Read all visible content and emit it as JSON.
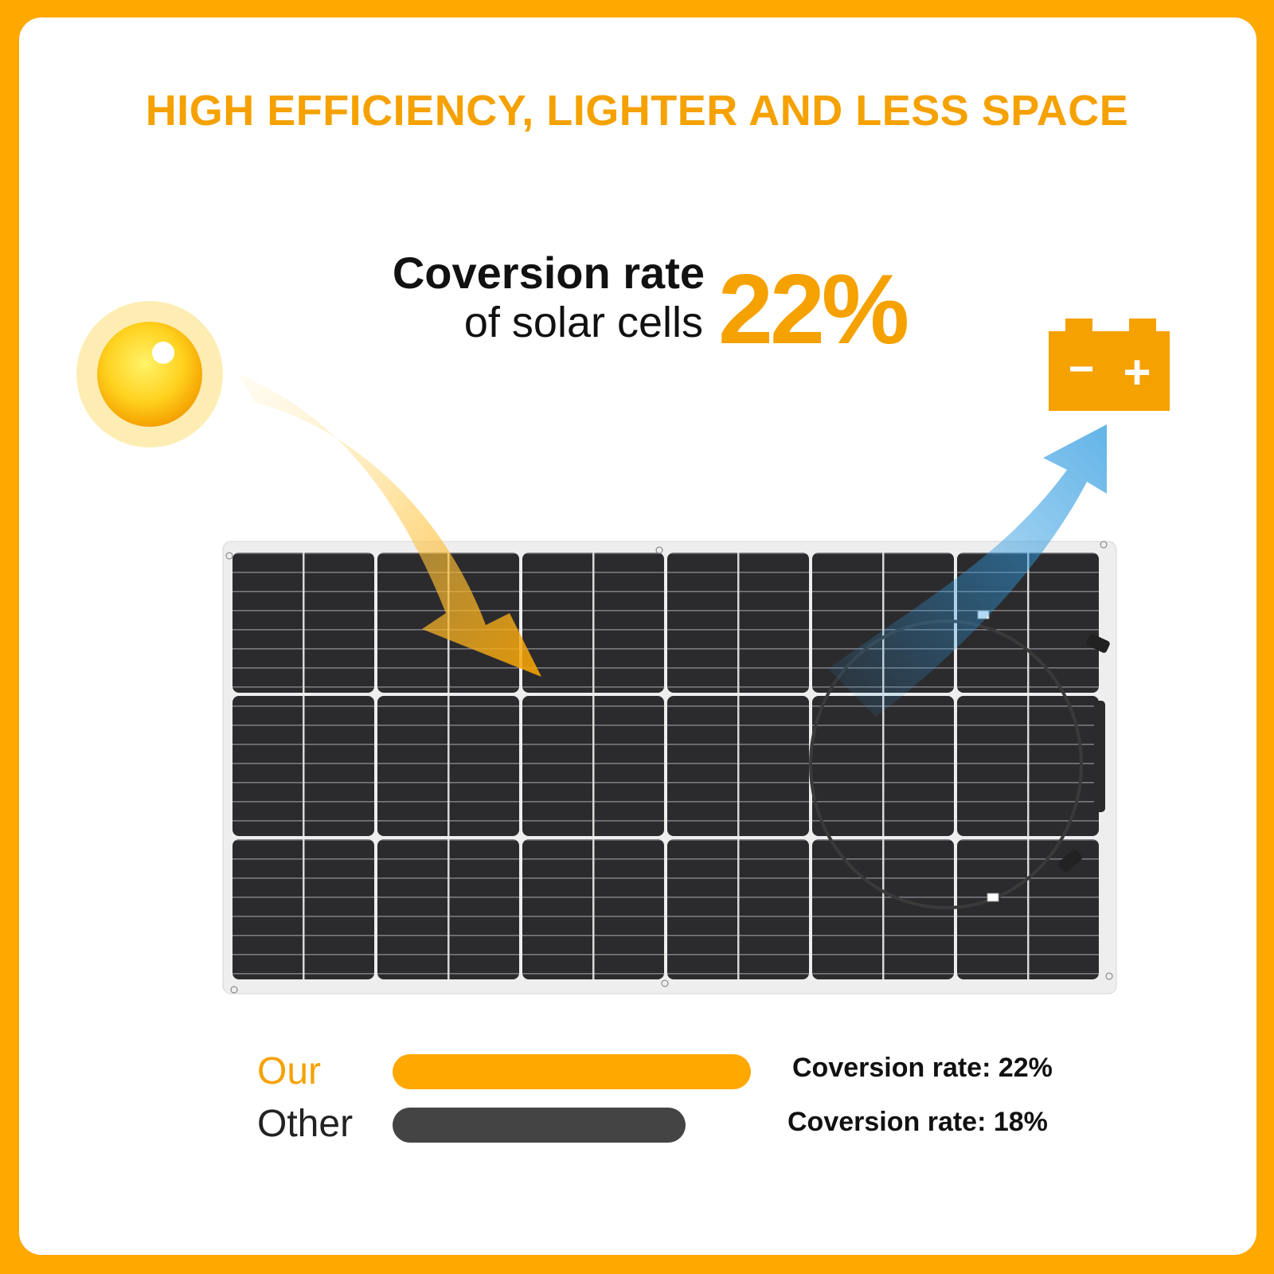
{
  "headline": "HIGH EFFICIENCY, LIGHTER AND LESS SPACE",
  "hero": {
    "line1": "Coversion rate",
    "line2": "of solar cells",
    "percent": "22%"
  },
  "icons": {
    "sun": "sun-icon",
    "battery": "battery-icon",
    "battery_minus": "−",
    "battery_plus": "+"
  },
  "comparison": {
    "max_value": 22,
    "rows": [
      {
        "label": "Our",
        "value": 22,
        "rate_text": "Coversion rate: 22%",
        "color": "#FFA800"
      },
      {
        "label": "Other",
        "value": 18,
        "rate_text": "Coversion rate: 18%",
        "color": "#444444"
      }
    ]
  },
  "colors": {
    "brand_orange": "#FFA800",
    "accent_text": "#F5A100",
    "panel_cell": "#2b2b2e",
    "panel_frame": "#eeeeee",
    "arrow_blue": "#2F9BE0"
  }
}
